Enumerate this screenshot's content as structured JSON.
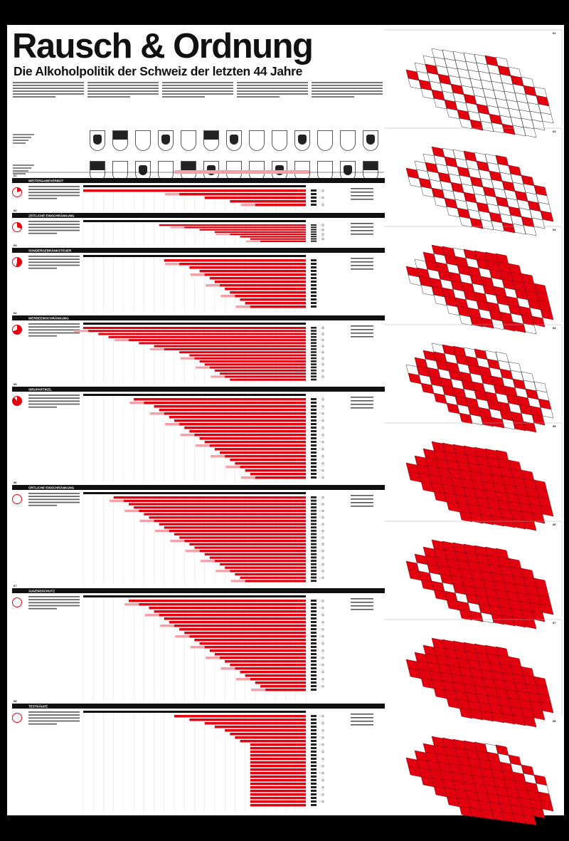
{
  "title": "Rausch & Ordnung",
  "subtitle": "Die Alkoholpolitik der Schweiz der letzten 44 Jahre",
  "colors": {
    "accent": "#e3000f",
    "light": "#f4a0a6",
    "ink": "#111111"
  },
  "chart_data": {
    "type": "bar",
    "orientation": "horizontal",
    "xlim": [
      1980,
      2024
    ],
    "sections": [
      {
        "nr": "01",
        "label": "WEITERGABEVERBOT",
        "bars": [
          1980,
          1999,
          2004,
          2009,
          2014
        ]
      },
      {
        "nr": "02",
        "label": "ZEITLICHE EINSCHRÄNKUNG",
        "bars": [
          1995,
          2000,
          2003,
          2006,
          2009,
          2011,
          2013,
          2015
        ]
      },
      {
        "nr": "03",
        "label": "SONDERGEBRÄNKSTEUER",
        "bars": [
          1996,
          1999,
          2001,
          2003,
          2004,
          2005,
          2006,
          2007,
          2008,
          2009,
          2010,
          2011,
          2012,
          2013
        ]
      },
      {
        "nr": "04",
        "label": "WERBEEINSCHRÄNKUNG",
        "bars": [
          1980,
          1981,
          1983,
          1985,
          1989,
          1991,
          1994,
          1996,
          1999,
          2001,
          2002,
          2003,
          2004,
          2005,
          2006,
          2007,
          2008,
          2009
        ]
      },
      {
        "nr": "05",
        "label": "SIRUPARTIKEL",
        "bars": [
          1990,
          1992,
          1994,
          1995,
          1996,
          1997,
          1998,
          1999,
          2000,
          2001,
          2002,
          2003,
          2004,
          2005,
          2006,
          2007,
          2008,
          2009,
          2010,
          2011,
          2012,
          2013,
          2014
        ]
      },
      {
        "nr": "06",
        "label": "ÖRTLICHE EINSCHRÄNKUNG",
        "bars": [
          1986,
          1988,
          1989,
          1990,
          1991,
          1992,
          1993,
          1994,
          1995,
          1996,
          1997,
          1998,
          1999,
          2000,
          2001,
          2002,
          2003,
          2004,
          2005,
          2006,
          2007,
          2008,
          2009,
          2010,
          2011,
          2012
        ]
      },
      {
        "nr": "07",
        "label": "JUGENDSCHUTZ",
        "bars": [
          1989,
          1991,
          1993,
          1994,
          1995,
          1996,
          1997,
          1998,
          1999,
          2000,
          2001,
          2002,
          2003,
          2004,
          2005,
          2006,
          2007,
          2008,
          2009,
          2010,
          2011,
          2012,
          2013,
          2014,
          2015,
          2016
        ]
      },
      {
        "nr": "08",
        "label": "TESTKÄUFE",
        "bars": [
          1998,
          2001,
          2004,
          2006,
          2008,
          2009,
          2010,
          2011,
          2013,
          2013,
          2013,
          2013,
          2013,
          2013,
          2013,
          2013,
          2013,
          2013,
          2013,
          2013,
          2013,
          2013,
          2013,
          2013,
          2013,
          2013
        ]
      }
    ]
  },
  "maps": [
    "01",
    "02",
    "03",
    "04",
    "05",
    "06",
    "07",
    "08"
  ]
}
